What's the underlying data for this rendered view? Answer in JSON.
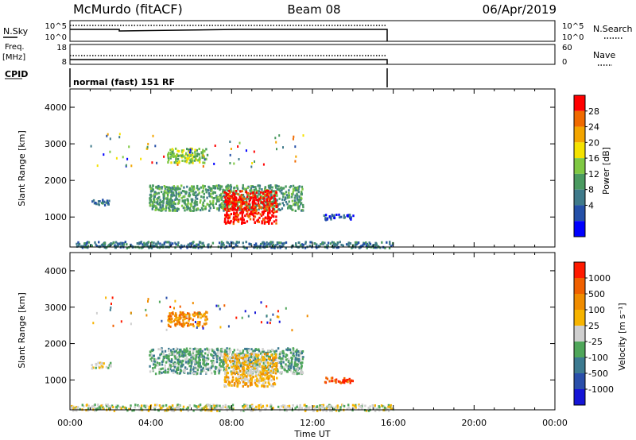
{
  "header": {
    "station": "McMurdo (fitACF)",
    "beam": "Beam 08",
    "date": "06/Apr/2019"
  },
  "panels": {
    "nsky_label": "N.Sky",
    "nsearch_label": "N.Search",
    "nsky_ticks": [
      "10^5",
      "10^0"
    ],
    "nsearch_ticks": [
      "10^5",
      "10^0"
    ],
    "freq_label": "Freq.",
    "freq_unit": "[MHz]",
    "freq_ticks": [
      "18",
      "8"
    ],
    "nave_label": "Nave",
    "nave_ticks": [
      "60",
      "0"
    ],
    "cpid_label": "CPID",
    "cpid_text": "normal (fast) 151 RF"
  },
  "power_colorbar": {
    "label": "Power [dB]",
    "ticks": [
      "28",
      "24",
      "20",
      "16",
      "12",
      "8",
      "4"
    ]
  },
  "velocity_colorbar": {
    "label": "Velocity [m s⁻¹]",
    "ticks": [
      "1000",
      "500",
      "100",
      "25",
      "-25",
      "-100",
      "-500",
      "-1000"
    ]
  },
  "colors": {
    "power_scale": [
      "#0000ff",
      "#2550a8",
      "#3f7a8a",
      "#4a9a60",
      "#7fc843",
      "#f5e200",
      "#f3a500",
      "#f06a00",
      "#ff0000"
    ],
    "velocity_scale": [
      "#1515d6",
      "#2a4faa",
      "#3c7a90",
      "#4fa65a",
      "#cfcfcf",
      "#f7b400",
      "#f08c00",
      "#f06000",
      "#ff1a00"
    ]
  },
  "chart_data": [
    {
      "type": "heatmap",
      "title": "Power",
      "ylabel": "Slant Range [km]",
      "xlabel": "Time UT",
      "x_ticks": [
        "00:00",
        "04:00",
        "08:00",
        "12:00",
        "16:00",
        "20:00",
        "00:00"
      ],
      "y_ticks": [
        "1000",
        "2000",
        "3000",
        "4000"
      ],
      "xlim_hours": [
        0,
        24
      ],
      "ylim_km": [
        180,
        4500
      ],
      "data_end_hour": 16,
      "clusters": [
        {
          "t0": 3.9,
          "t1": 11.5,
          "r0": 1200,
          "r1": 1900,
          "level": 3
        },
        {
          "t0": 7.6,
          "t1": 10.2,
          "r0": 850,
          "r1": 1750,
          "level": 8
        },
        {
          "t0": 4.8,
          "t1": 6.8,
          "r0": 2500,
          "r1": 2900,
          "level": 4
        },
        {
          "t0": 1.0,
          "t1": 2.0,
          "r0": 1350,
          "r1": 1500,
          "level": 2
        },
        {
          "t0": 12.5,
          "t1": 14.0,
          "r0": 950,
          "r1": 1100,
          "level": 1
        },
        {
          "t0": 0.0,
          "t1": 16.0,
          "r0": 180,
          "r1": 350,
          "level": 2
        }
      ]
    },
    {
      "type": "heatmap",
      "title": "Velocity",
      "ylabel": "Slant Range [km]",
      "xlabel": "Time UT",
      "x_ticks": [
        "00:00",
        "04:00",
        "08:00",
        "12:00",
        "16:00",
        "20:00",
        "00:00"
      ],
      "y_ticks": [
        "1000",
        "2000",
        "3000",
        "4000"
      ],
      "xlim_hours": [
        0,
        24
      ],
      "ylim_km": [
        180,
        4500
      ],
      "data_end_hour": 16,
      "clusters": [
        {
          "t0": 3.9,
          "t1": 11.5,
          "r0": 1200,
          "r1": 1900,
          "level": 3
        },
        {
          "t0": 7.6,
          "t1": 10.2,
          "r0": 850,
          "r1": 1750,
          "level": 5
        },
        {
          "t0": 4.8,
          "t1": 6.8,
          "r0": 2500,
          "r1": 2900,
          "level": 6
        },
        {
          "t0": 1.0,
          "t1": 2.0,
          "r0": 1350,
          "r1": 1500,
          "level": 4
        },
        {
          "t0": 12.5,
          "t1": 14.0,
          "r0": 950,
          "r1": 1100,
          "level": 7
        },
        {
          "t0": 0.0,
          "t1": 16.0,
          "r0": 180,
          "r1": 350,
          "level": 4
        }
      ]
    }
  ]
}
